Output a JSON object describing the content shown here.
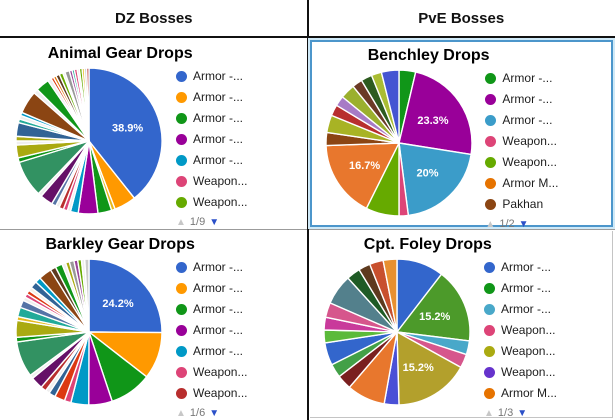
{
  "headers": {
    "left": "DZ Bosses",
    "right": "PvE Bosses"
  },
  "icons": {
    "page_up": "▲",
    "page_down": "▼"
  },
  "accent_colors": {
    "selected_border": "#4C96CB",
    "pager_active": "#2B50C8",
    "divider": "#111111"
  },
  "chart_data": [
    {
      "type": "pie",
      "title": "Animal Gear Drops",
      "pagination": "1/9",
      "legend": [
        {
          "label": "Armor -...",
          "color": "#3366CC"
        },
        {
          "label": "Armor -...",
          "color": "#FF9900"
        },
        {
          "label": "Armor -...",
          "color": "#109618"
        },
        {
          "label": "Armor -...",
          "color": "#990099"
        },
        {
          "label": "Armor -...",
          "color": "#0099C6"
        },
        {
          "label": "Weapon...",
          "color": "#DD4477"
        },
        {
          "label": "Weapon...",
          "color": "#66AA00"
        }
      ],
      "slices": [
        {
          "value": 38.9,
          "color": "#3366CC",
          "label": "38.9%"
        },
        {
          "value": 4.8,
          "color": "#FF9900"
        },
        {
          "value": 0.8,
          "color": "#E6B91E"
        },
        {
          "value": 3.0,
          "color": "#109618"
        },
        {
          "value": 4.3,
          "color": "#990099"
        },
        {
          "value": 1.7,
          "color": "#0099C6"
        },
        {
          "value": 0.7,
          "color": "#EFEFEF"
        },
        {
          "value": 0.9,
          "color": "#DD4477"
        },
        {
          "value": 1.0,
          "color": "#B82E2E"
        },
        {
          "value": 0.8,
          "color": "#EFEFEF"
        },
        {
          "value": 1.0,
          "color": "#5574A6"
        },
        {
          "value": 2.8,
          "color": "#651067"
        },
        {
          "value": 0.8,
          "color": "#EFEFEF"
        },
        {
          "value": 8.0,
          "color": "#329262"
        },
        {
          "value": 1.0,
          "color": "#109618"
        },
        {
          "value": 2.8,
          "color": "#AAAA11"
        },
        {
          "value": 0.9,
          "color": "#EFEFEF"
        },
        {
          "value": 1.0,
          "color": "#AAAA11"
        },
        {
          "value": 3.0,
          "color": "#316395"
        },
        {
          "value": 0.8,
          "color": "#22AA99"
        },
        {
          "value": 0.8,
          "color": "#EFEFEF"
        },
        {
          "value": 0.7,
          "color": "#0099C6"
        },
        {
          "value": 5.0,
          "color": "#8B4513"
        },
        {
          "value": 1.0,
          "color": "#EFEFEF"
        },
        {
          "value": 3.0,
          "color": "#109618"
        },
        {
          "value": 0.8,
          "color": "#EFEFEF"
        },
        {
          "value": 0.6,
          "color": "#DC3912"
        },
        {
          "value": 0.6,
          "color": "#E67300"
        },
        {
          "value": 0.8,
          "color": "#5E3A1E"
        },
        {
          "value": 0.8,
          "color": "#66AA00"
        },
        {
          "value": 0.5,
          "color": "#EFEFEF"
        },
        {
          "value": 1.0,
          "color": "#999999"
        },
        {
          "value": 0.6,
          "color": "#994499"
        },
        {
          "value": 0.5,
          "color": "#22AA99"
        },
        {
          "value": 0.6,
          "color": "#DD4477"
        },
        {
          "value": 0.5,
          "color": "#EFEFEF"
        },
        {
          "value": 0.6,
          "color": "#66AA00"
        },
        {
          "value": 0.5,
          "color": "#E6B91E"
        },
        {
          "value": 0.5,
          "color": "#CCCCCC"
        },
        {
          "value": 0.5,
          "color": "#B82E2E"
        }
      ]
    },
    {
      "type": "pie",
      "title": "Benchley Drops",
      "pagination": "1/2",
      "selected": true,
      "legend": [
        {
          "label": "Armor -...",
          "color": "#109618"
        },
        {
          "label": "Armor -...",
          "color": "#990099"
        },
        {
          "label": "Armor -...",
          "color": "#3B9CC9"
        },
        {
          "label": "Weapon...",
          "color": "#DD4477"
        },
        {
          "label": "Weapon...",
          "color": "#66AA00"
        },
        {
          "label": "Armor M...",
          "color": "#E67300"
        },
        {
          "label": "Pakhan",
          "color": "#8B4513"
        }
      ],
      "slices": [
        {
          "value": 3.6,
          "color": "#109618"
        },
        {
          "value": 23.3,
          "color": "#990099",
          "label": "23.3%"
        },
        {
          "value": 20.0,
          "color": "#3B9CC9",
          "label": "20%"
        },
        {
          "value": 2.0,
          "color": "#DD4477"
        },
        {
          "value": 7.2,
          "color": "#66AA00"
        },
        {
          "value": 16.7,
          "color": "#E8772D",
          "label": "16.7%"
        },
        {
          "value": 2.8,
          "color": "#8B4513"
        },
        {
          "value": 3.8,
          "color": "#A8B324"
        },
        {
          "value": 2.4,
          "color": "#B82E2E"
        },
        {
          "value": 2.2,
          "color": "#A77BC6"
        },
        {
          "value": 3.2,
          "color": "#9BB02E"
        },
        {
          "value": 2.2,
          "color": "#6B3A26"
        },
        {
          "value": 2.4,
          "color": "#2D5B1F"
        },
        {
          "value": 2.2,
          "color": "#AABD33"
        },
        {
          "value": 3.8,
          "color": "#4455D2"
        }
      ]
    },
    {
      "type": "pie",
      "title": "Barkley Gear Drops",
      "pagination": "1/6",
      "legend": [
        {
          "label": "Armor -...",
          "color": "#3366CC"
        },
        {
          "label": "Armor -...",
          "color": "#FF9900"
        },
        {
          "label": "Armor -...",
          "color": "#109618"
        },
        {
          "label": "Armor -...",
          "color": "#990099"
        },
        {
          "label": "Armor -...",
          "color": "#0099C6"
        },
        {
          "label": "Weapon...",
          "color": "#DD4477"
        },
        {
          "label": "Weapon...",
          "color": "#B82E2E"
        }
      ],
      "slices": [
        {
          "value": 24.2,
          "color": "#3366CC",
          "label": "24.2%"
        },
        {
          "value": 10.0,
          "color": "#FF9900"
        },
        {
          "value": 9.0,
          "color": "#109618"
        },
        {
          "value": 5.0,
          "color": "#990099"
        },
        {
          "value": 3.8,
          "color": "#0099C6"
        },
        {
          "value": 1.4,
          "color": "#DD4477"
        },
        {
          "value": 2.2,
          "color": "#DC3912"
        },
        {
          "value": 1.4,
          "color": "#316395"
        },
        {
          "value": 0.9,
          "color": "#EFEFEF"
        },
        {
          "value": 1.2,
          "color": "#B82E2E"
        },
        {
          "value": 2.6,
          "color": "#651067"
        },
        {
          "value": 0.8,
          "color": "#EFEFEF"
        },
        {
          "value": 7.6,
          "color": "#329262"
        },
        {
          "value": 1.0,
          "color": "#109618"
        },
        {
          "value": 3.6,
          "color": "#AAAA11"
        },
        {
          "value": 0.8,
          "color": "#E6B91E"
        },
        {
          "value": 2.0,
          "color": "#22AA99"
        },
        {
          "value": 1.6,
          "color": "#5574A6"
        },
        {
          "value": 0.8,
          "color": "#EFEFEF"
        },
        {
          "value": 0.8,
          "color": "#DD4477"
        },
        {
          "value": 0.8,
          "color": "#DC3912"
        },
        {
          "value": 0.8,
          "color": "#F5F0E6"
        },
        {
          "value": 1.5,
          "color": "#316395"
        },
        {
          "value": 1.2,
          "color": "#0099C6"
        },
        {
          "value": 2.8,
          "color": "#8B4513"
        },
        {
          "value": 1.2,
          "color": "#5E3A1E"
        },
        {
          "value": 1.5,
          "color": "#109618"
        },
        {
          "value": 0.8,
          "color": "#EFEFEF"
        },
        {
          "value": 0.8,
          "color": "#AAAA11"
        },
        {
          "value": 1.0,
          "color": "#999999"
        },
        {
          "value": 0.8,
          "color": "#994499"
        },
        {
          "value": 0.8,
          "color": "#66AA00"
        },
        {
          "value": 0.7,
          "color": "#EFEFEF"
        },
        {
          "value": 0.9,
          "color": "#CCCCCC"
        }
      ]
    },
    {
      "type": "pie",
      "title": "Cpt. Foley Drops",
      "pagination": "1/3",
      "legend": [
        {
          "label": "Armor -...",
          "color": "#3366CC"
        },
        {
          "label": "Armor -...",
          "color": "#109618"
        },
        {
          "label": "Armor -...",
          "color": "#49A8C9"
        },
        {
          "label": "Weapon...",
          "color": "#DD4477"
        },
        {
          "label": "Weapon...",
          "color": "#AAAA11"
        },
        {
          "label": "Weapon...",
          "color": "#6633CC"
        },
        {
          "label": "Armor M...",
          "color": "#E67300"
        }
      ],
      "slices": [
        {
          "value": 9.6,
          "color": "#3366CC"
        },
        {
          "value": 15.2,
          "color": "#4C9A2A",
          "label": "15.2%"
        },
        {
          "value": 2.8,
          "color": "#49A8C9"
        },
        {
          "value": 2.8,
          "color": "#D6568C"
        },
        {
          "value": 15.2,
          "color": "#B3A02C",
          "label": "15.2%"
        },
        {
          "value": 3.0,
          "color": "#4A50D6"
        },
        {
          "value": 7.8,
          "color": "#E8772D"
        },
        {
          "value": 3.0,
          "color": "#7A1F1F"
        },
        {
          "value": 2.8,
          "color": "#43A047"
        },
        {
          "value": 4.6,
          "color": "#3366CC"
        },
        {
          "value": 2.6,
          "color": "#5BBA3A"
        },
        {
          "value": 2.6,
          "color": "#C93A9B"
        },
        {
          "value": 3.0,
          "color": "#D6568C"
        },
        {
          "value": 6.2,
          "color": "#53808C"
        },
        {
          "value": 2.8,
          "color": "#1F5B25"
        },
        {
          "value": 2.4,
          "color": "#5E3A1E"
        },
        {
          "value": 2.8,
          "color": "#C8502E"
        },
        {
          "value": 2.8,
          "color": "#E89030"
        }
      ]
    }
  ]
}
